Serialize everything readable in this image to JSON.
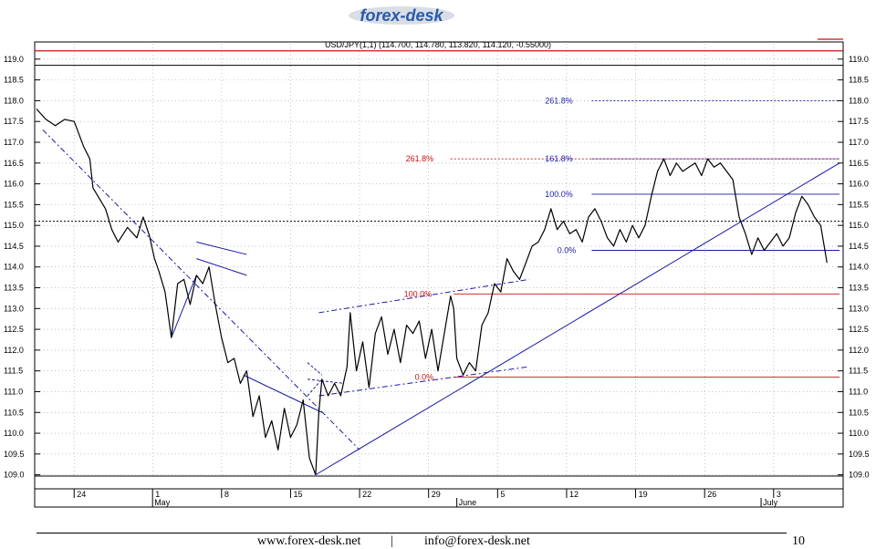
{
  "brand": {
    "logo_text": "forex-desk"
  },
  "footer": {
    "website": "www.forex-desk.net",
    "separator": "|",
    "email": "info@forex-desk.net",
    "page_number": "10"
  },
  "chart_data": {
    "type": "line",
    "title": "USD/JPY(1,1) (114.700, 114.780, 113.820, 114.120, -0.55000)",
    "instrument": "USD/JPY",
    "last_ohlc": {
      "open": 114.7,
      "high": 114.78,
      "low": 113.82,
      "close": 114.12,
      "change": -0.55
    },
    "ylim": [
      108.9,
      119.15
    ],
    "y_ticks": [
      "119.0",
      "118.5",
      "118.0",
      "117.5",
      "117.0",
      "116.5",
      "116.0",
      "115.5",
      "115.0",
      "114.5",
      "114.0",
      "113.5",
      "113.0",
      "112.5",
      "112.0",
      "111.5",
      "111.0",
      "110.5",
      "110.0",
      "109.5",
      "109.0"
    ],
    "x_day_labels": [
      "24",
      "1",
      "8",
      "15",
      "22",
      "29",
      "5",
      "12",
      "19",
      "26",
      "3"
    ],
    "x_month_labels": [
      "May",
      "June",
      "July"
    ],
    "grid": true,
    "series": [
      {
        "values": [
          [
            0,
            117.8
          ],
          [
            1.5,
            117.55
          ],
          [
            3,
            117.4
          ],
          [
            4.5,
            117.55
          ],
          [
            6,
            117.5
          ],
          [
            7.5,
            116.9
          ],
          [
            8.5,
            116.6
          ],
          [
            9,
            115.9
          ],
          [
            11,
            115.4
          ],
          [
            12,
            114.9
          ],
          [
            13,
            114.6
          ],
          [
            14.5,
            114.95
          ],
          [
            16,
            114.7
          ],
          [
            17,
            115.2
          ],
          [
            18,
            114.75
          ],
          [
            18.8,
            114.2
          ],
          [
            19.5,
            113.9
          ],
          [
            20.5,
            113.4
          ],
          [
            21.5,
            112.3
          ],
          [
            22.5,
            113.6
          ],
          [
            23.5,
            113.7
          ],
          [
            24.5,
            113.1
          ],
          [
            25.5,
            113.8
          ],
          [
            26.5,
            113.6
          ],
          [
            27.5,
            114.0
          ],
          [
            28.5,
            113.1
          ],
          [
            29.5,
            112.3
          ],
          [
            30.5,
            111.7
          ],
          [
            31.5,
            111.8
          ],
          [
            32.5,
            111.2
          ],
          [
            33.5,
            111.5
          ],
          [
            34.5,
            110.4
          ],
          [
            35.5,
            110.9
          ],
          [
            36.5,
            109.9
          ],
          [
            37.5,
            110.3
          ],
          [
            38.5,
            109.6
          ],
          [
            39.5,
            110.6
          ],
          [
            40.5,
            109.9
          ],
          [
            41.5,
            110.2
          ],
          [
            42.5,
            110.8
          ],
          [
            43.5,
            109.4
          ],
          [
            44.5,
            109.0
          ],
          [
            45,
            110.5
          ],
          [
            45.5,
            111.3
          ],
          [
            46.5,
            110.9
          ],
          [
            47.5,
            111.2
          ],
          [
            48.5,
            110.9
          ],
          [
            49.5,
            111.6
          ],
          [
            50,
            112.9
          ],
          [
            51,
            111.5
          ],
          [
            52,
            112.2
          ],
          [
            53,
            111.1
          ],
          [
            54,
            112.4
          ],
          [
            55,
            112.8
          ],
          [
            56,
            111.9
          ],
          [
            57,
            112.5
          ],
          [
            58,
            111.7
          ],
          [
            59,
            112.6
          ],
          [
            60,
            112.4
          ],
          [
            61,
            112.7
          ],
          [
            62,
            111.8
          ],
          [
            63,
            112.5
          ],
          [
            64,
            111.5
          ],
          [
            65,
            112.4
          ],
          [
            66,
            113.3
          ],
          [
            66.5,
            113.0
          ],
          [
            67,
            111.8
          ],
          [
            68,
            111.4
          ],
          [
            69,
            111.7
          ],
          [
            70,
            111.5
          ],
          [
            71,
            112.6
          ],
          [
            72,
            112.9
          ],
          [
            73,
            113.6
          ],
          [
            74,
            113.4
          ],
          [
            75,
            114.2
          ],
          [
            76,
            113.9
          ],
          [
            77,
            113.7
          ],
          [
            78,
            114.1
          ],
          [
            79,
            114.5
          ],
          [
            80,
            114.6
          ],
          [
            81,
            114.9
          ],
          [
            82,
            115.4
          ],
          [
            83,
            114.9
          ],
          [
            84,
            115.1
          ],
          [
            85,
            114.8
          ],
          [
            86,
            114.9
          ],
          [
            87,
            114.6
          ],
          [
            88,
            115.2
          ],
          [
            89,
            115.4
          ],
          [
            90,
            115.1
          ],
          [
            91,
            114.7
          ],
          [
            92,
            114.5
          ],
          [
            93,
            114.9
          ],
          [
            94,
            114.6
          ],
          [
            95,
            115.0
          ],
          [
            96,
            114.7
          ],
          [
            97,
            115.0
          ],
          [
            98,
            115.7
          ],
          [
            99,
            116.3
          ],
          [
            100,
            116.6
          ],
          [
            101,
            116.2
          ],
          [
            102,
            116.5
          ],
          [
            103,
            116.3
          ],
          [
            104,
            116.4
          ],
          [
            105,
            116.5
          ],
          [
            106,
            116.2
          ],
          [
            107,
            116.6
          ],
          [
            108,
            116.4
          ],
          [
            109,
            116.5
          ],
          [
            110,
            116.3
          ],
          [
            111,
            116.1
          ],
          [
            112,
            115.2
          ],
          [
            113,
            114.8
          ],
          [
            114,
            114.3
          ],
          [
            115,
            114.7
          ],
          [
            116,
            114.4
          ],
          [
            117,
            114.6
          ],
          [
            118,
            114.8
          ],
          [
            119,
            114.5
          ],
          [
            120,
            114.7
          ],
          [
            121,
            115.3
          ],
          [
            122,
            115.7
          ],
          [
            123,
            115.5
          ],
          [
            124,
            115.2
          ],
          [
            125,
            115.0
          ],
          [
            126,
            114.1
          ]
        ]
      }
    ],
    "trendlines": [
      {
        "from": [
          1,
          117.3
        ],
        "to": [
          51.5,
          109.6
        ]
      },
      {
        "from": [
          21.5,
          112.3
        ],
        "to": [
          25.5,
          113.8
        ]
      },
      {
        "from": [
          25.5,
          114.6
        ],
        "to": [
          33.5,
          114.3
        ]
      },
      {
        "from": [
          25.5,
          114.2
        ],
        "to": [
          33.5,
          113.8
        ]
      },
      {
        "from": [
          33,
          111.4
        ],
        "to": [
          45.5,
          110.5
        ]
      },
      {
        "from": [
          44.5,
          109.0
        ],
        "to": [
          128,
          116.5
        ]
      },
      {
        "from": [
          43.2,
          111.7
        ],
        "to": [
          45.5,
          111.4
        ]
      },
      {
        "from": [
          43.2,
          110.9
        ],
        "to": [
          45.5,
          111.3
        ]
      },
      {
        "from": [
          43.2,
          111.3
        ],
        "to": [
          49,
          111.2
        ]
      },
      {
        "from": [
          45,
          112.9
        ],
        "to": [
          78.5,
          113.7
        ]
      },
      {
        "from": [
          45,
          110.9
        ],
        "to": [
          78.5,
          111.6
        ]
      }
    ],
    "fibonacci": [
      {
        "label": "261.8%",
        "price": 116.6,
        "set": "lower"
      },
      {
        "label": "100.0%",
        "price": 113.35,
        "set": "lower"
      },
      {
        "label": "0.0%",
        "price": 111.35,
        "set": "lower"
      },
      {
        "label": "261.8%",
        "price": 118.0,
        "set": "upper"
      },
      {
        "label": "161.8%",
        "price": 116.6,
        "set": "upper"
      },
      {
        "label": "100.0%",
        "price": 115.75,
        "set": "upper"
      },
      {
        "label": "0.0%",
        "price": 114.4,
        "set": "upper"
      }
    ],
    "reference_levels": [
      119.2,
      118.85,
      115.1,
      108.97
    ],
    "colors": {
      "price": "#000000",
      "trend": "#1a1aa8",
      "fib_red": "#cc1111",
      "fib_blue": "#1a1aa8",
      "logo": "#2a5aa8"
    }
  }
}
